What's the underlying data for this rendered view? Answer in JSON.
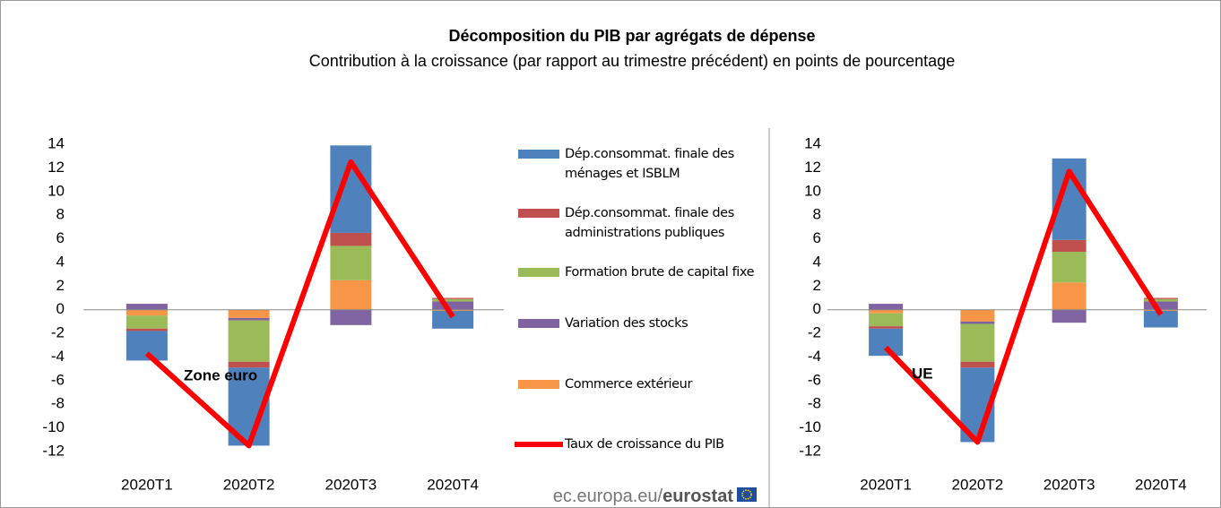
{
  "title": "Décomposition du PIB par agrégats de dépense",
  "subtitle": "Contribution à la croissance (par rapport au trimestre précédent) en points de pourcentage",
  "source": {
    "prefix": "ec.europa.eu/",
    "brand": "eurostat"
  },
  "chart_data": [
    {
      "type": "bar",
      "stacked": true,
      "annotation": "Zone euro",
      "categories": [
        "2020T1",
        "2020T2",
        "2020T3",
        "2020T4"
      ],
      "ylim": [
        -12,
        14
      ],
      "yticks": [
        -12,
        -10,
        -8,
        -6,
        -4,
        -2,
        0,
        2,
        4,
        6,
        8,
        10,
        12,
        14
      ],
      "series": [
        {
          "name": "Dép.consommat. finale des ménages et ISBLM",
          "color": "#4f81bd",
          "values": [
            -2.5,
            -6.6,
            7.4,
            -1.5
          ]
        },
        {
          "name": "Dép.consommat. finale des administrations publiques",
          "color": "#c0504d",
          "values": [
            -0.2,
            -0.5,
            1.1,
            0.1
          ]
        },
        {
          "name": "Formation brute de capital fixe",
          "color": "#9bbb59",
          "values": [
            -1.1,
            -3.5,
            2.9,
            0.2
          ]
        },
        {
          "name": "Variation des stocks",
          "color": "#8064a2",
          "values": [
            0.5,
            -0.2,
            -1.3,
            0.7
          ]
        },
        {
          "name": "Commerce extérieur",
          "color": "#f79646",
          "values": [
            -0.5,
            -0.7,
            2.5,
            -0.1
          ]
        },
        {
          "name": "Taux de croissance du PIB",
          "color": "#ff0000",
          "type": "line",
          "values": [
            -3.7,
            -11.5,
            12.5,
            -0.6
          ]
        }
      ]
    },
    {
      "type": "bar",
      "stacked": true,
      "annotation": "UE",
      "categories": [
        "2020T1",
        "2020T2",
        "2020T3",
        "2020T4"
      ],
      "ylim": [
        -12,
        14
      ],
      "yticks": [
        -12,
        -10,
        -8,
        -6,
        -4,
        -2,
        0,
        2,
        4,
        6,
        8,
        10,
        12,
        14
      ],
      "series": [
        {
          "color": "#4f81bd",
          "values": [
            -2.3,
            -6.3,
            6.9,
            -1.4
          ]
        },
        {
          "color": "#c0504d",
          "values": [
            -0.2,
            -0.5,
            1.0,
            0.1
          ]
        },
        {
          "color": "#9bbb59",
          "values": [
            -1.1,
            -3.2,
            2.6,
            0.2
          ]
        },
        {
          "color": "#8064a2",
          "values": [
            0.5,
            -0.2,
            -1.1,
            0.7
          ]
        },
        {
          "color": "#f79646",
          "values": [
            -0.3,
            -1.0,
            2.3,
            -0.1
          ]
        },
        {
          "color": "#ff0000",
          "type": "line",
          "values": [
            -3.2,
            -11.2,
            11.7,
            -0.4
          ]
        }
      ]
    }
  ]
}
